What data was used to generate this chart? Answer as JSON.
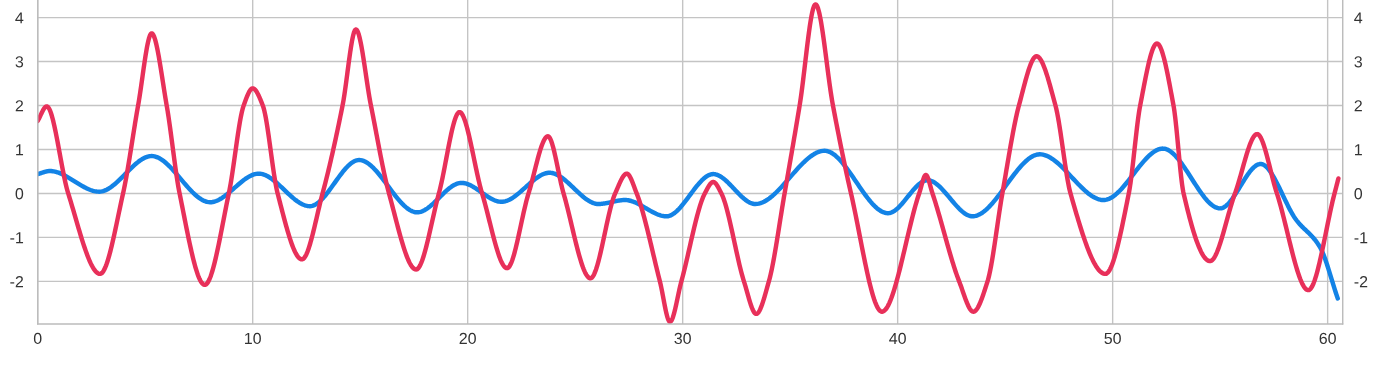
{
  "chart_data": {
    "type": "line",
    "series": [
      {
        "color": "#1383e6",
        "x": [
          0,
          0.57,
          2.86,
          5.3,
          8.02,
          10.28,
          12.66,
          14.95,
          17.65,
          19.71,
          21.57,
          23.81,
          26.08,
          27.32,
          29.25,
          31.42,
          33.38,
          36.6,
          39.55,
          41.39,
          43.48,
          46.61,
          49.58,
          52.34,
          55.0,
          56.88,
          58.55,
          59.63,
          60.47
        ],
        "values": [
          0.44,
          0.51,
          0.04,
          0.85,
          -0.2,
          0.45,
          -0.29,
          0.76,
          -0.43,
          0.24,
          -0.19,
          0.47,
          -0.24,
          -0.15,
          -0.52,
          0.44,
          -0.24,
          0.97,
          -0.45,
          0.3,
          -0.52,
          0.89,
          -0.15,
          1.02,
          -0.34,
          0.67,
          -0.61,
          -1.21,
          -2.39
        ]
      },
      {
        "color": "#e8305a",
        "x": [
          0,
          0.42,
          1.42,
          2.9,
          3.97,
          4.67,
          5.3,
          6.0,
          6.6,
          7.77,
          8.89,
          9.58,
          10.0,
          10.47,
          11.16,
          12.29,
          13.25,
          14.18,
          14.8,
          15.5,
          16.34,
          17.6,
          18.66,
          19.62,
          20.67,
          21.83,
          22.83,
          23.73,
          24.46,
          25.71,
          26.86,
          27.4,
          27.86,
          28.94,
          29.41,
          29.94,
          31.03,
          31.42,
          31.8,
          32.85,
          33.42,
          34.01,
          34.74,
          35.44,
          36.18,
          36.99,
          37.83,
          39.27,
          41.0,
          41.31,
          41.62,
          42.86,
          43.52,
          44.18,
          44.87,
          45.64,
          46.46,
          47.34,
          48.04,
          49.66,
          50.75,
          51.28,
          52.06,
          52.83,
          53.3,
          54.53,
          55.69,
          56.72,
          57.64,
          59.1,
          60.32,
          60.5
        ],
        "values": [
          1.65,
          1.98,
          0,
          -1.83,
          0,
          2,
          3.64,
          2,
          0,
          -2.08,
          0,
          2,
          2.39,
          2,
          0,
          -1.5,
          0,
          2,
          3.73,
          2,
          0,
          -1.73,
          0,
          1.85,
          0,
          -1.7,
          0,
          1.3,
          0,
          -1.93,
          0,
          0.45,
          0,
          -2,
          -2.92,
          -2,
          0,
          0.26,
          0,
          -2,
          -2.74,
          -2,
          0,
          2,
          4.3,
          2,
          0,
          -2.69,
          0,
          0.42,
          0,
          -2,
          -2.69,
          -2,
          0,
          2,
          3.12,
          2,
          0,
          -1.83,
          0,
          2,
          3.41,
          2,
          0,
          -1.54,
          0,
          1.35,
          0,
          -2.2,
          0,
          0.34
        ]
      }
    ],
    "xlim": [
      0,
      60.7
    ],
    "xticks": [
      0,
      10,
      20,
      30,
      40,
      50,
      60
    ],
    "ylim": [
      -2.97,
      4.4
    ],
    "yticks": [
      -2,
      -1,
      0,
      1,
      2,
      3,
      4
    ],
    "y2lim": [
      -2.97,
      4.4
    ],
    "y2ticks": [
      -2,
      -1,
      0,
      1,
      2,
      3,
      4
    ],
    "grid": true,
    "marker": "none",
    "line_style": "solid"
  }
}
